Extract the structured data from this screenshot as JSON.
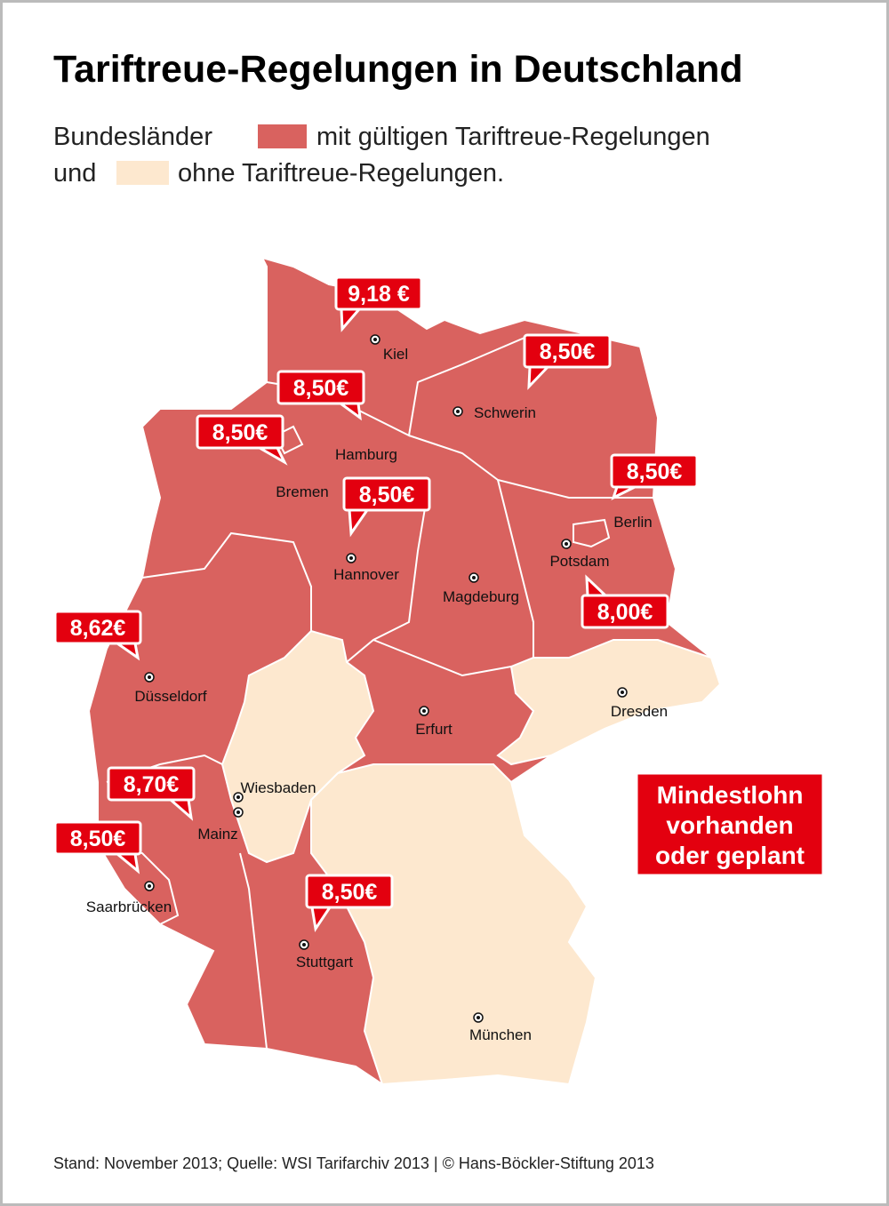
{
  "title": "Tariftreue-Regelungen in Deutschland",
  "legend": {
    "prefix": "Bundesländer",
    "with": "mit gültigen Tariftreue-Regelungen",
    "conjunction": "und",
    "without": "ohne Tariftreue-Regelungen.",
    "with_color": "#d9625f",
    "without_color": "#fde8cf"
  },
  "cities": [
    "Kiel",
    "Schwerin",
    "Hamburg",
    "Bremen",
    "Hannover",
    "Berlin",
    "Potsdam",
    "Magdeburg",
    "Düsseldorf",
    "Erfurt",
    "Dresden",
    "Wiesbaden",
    "Mainz",
    "Saarbrücken",
    "Stuttgart",
    "München"
  ],
  "wage_labels": [
    "9,18 €",
    "8,50€",
    "8,50€",
    "8,50€",
    "8,50€",
    "8,50€",
    "8,00€",
    "8,62€",
    "8,70€",
    "8,50€",
    "8,50€"
  ],
  "callout": [
    "Mindestlohn",
    "vorhanden",
    "oder geplant"
  ],
  "footer": "Stand: November 2013; Quelle: WSI Tarifarchiv 2013 | © Hans-Böckler-Stiftung 2013"
}
